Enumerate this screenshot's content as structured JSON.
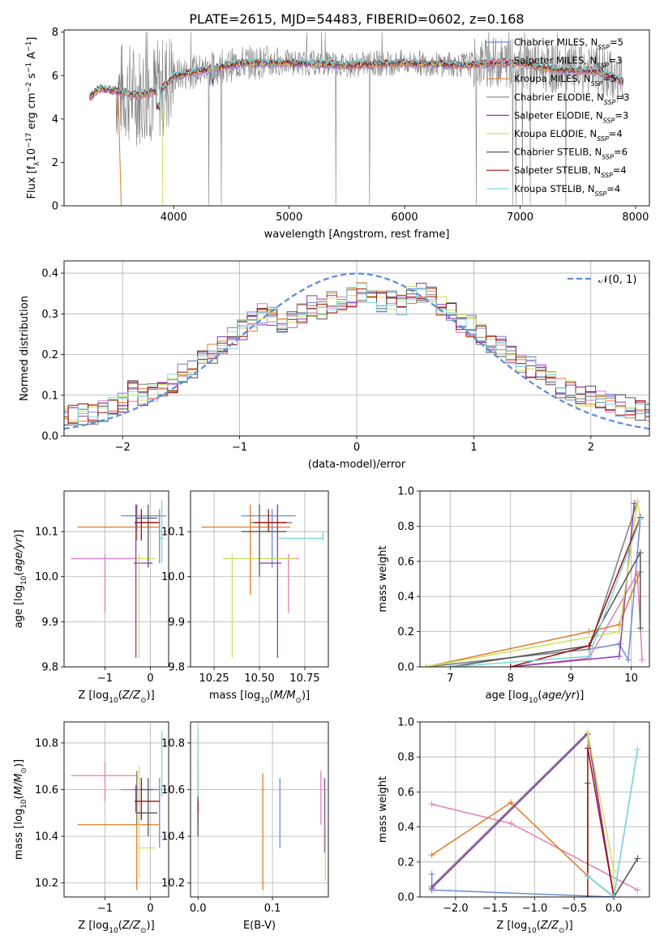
{
  "title": "PLATE=2615, MJD=54483, FIBERID=0602, z=0.168",
  "colors": {
    "blue": "#6c8cd6",
    "pink": "#e17fba",
    "orange": "#e07b26",
    "gray": "#7f7f7f",
    "purple": "#8e3ab0",
    "lime": "#c9e25c",
    "dark": "#555555",
    "red": "#a01010",
    "cyan": "#7fd6dc",
    "norm": "#5b8bd9"
  },
  "chart_data": [
    {
      "type": "line",
      "id": "spectrum",
      "xlabel": "wavelength [Angstrom, rest frame]",
      "ylabel": "Flux [f_λ 10^-17 erg cm^-2 s^-1 A^-1]",
      "xlim": [
        3050,
        8120
      ],
      "ylim": [
        0,
        8.1
      ],
      "xticks": [
        4000,
        5000,
        6000,
        7000,
        8000
      ],
      "yticks": [
        0,
        2,
        4,
        6,
        8
      ],
      "legend_position": "top-right",
      "series": [
        {
          "name": "Chabrier MILES, N_SSP=5",
          "color": "blue"
        },
        {
          "name": "Salpeter MILES, N_SSP=3",
          "color": "pink"
        },
        {
          "name": "Kroupa MILES, N_SSP=5",
          "color": "orange"
        },
        {
          "name": "Chabrier ELODIE, N_SSP=3",
          "color": "gray"
        },
        {
          "name": "Salpeter ELODIE, N_SSP=3",
          "color": "purple"
        },
        {
          "name": "Kroupa ELODIE, N_SSP=4",
          "color": "lime"
        },
        {
          "name": "Chabrier STELIB, N_SSP=6",
          "color": "dark"
        },
        {
          "name": "Salpeter STELIB, N_SSP=4",
          "color": "red"
        },
        {
          "name": "Kroupa STELIB, N_SSP=4",
          "color": "cyan"
        }
      ],
      "continuum": {
        "x": [
          3270,
          3350,
          3500,
          3700,
          3900,
          4000,
          4300,
          4600,
          5000,
          5500,
          6000,
          6500,
          6800,
          7000,
          7300,
          7700,
          7900
        ],
        "y": [
          5.0,
          5.4,
          5.3,
          5.1,
          5.4,
          6.0,
          6.3,
          6.6,
          6.6,
          6.5,
          6.6,
          6.5,
          6.6,
          6.6,
          6.3,
          6.2,
          5.7
        ]
      }
    },
    {
      "type": "bar",
      "id": "residuals",
      "xlabel": "(data-model)/error",
      "ylabel": "Normed distribution",
      "xlim": [
        -2.5,
        2.5
      ],
      "ylim": [
        0,
        0.43
      ],
      "xticks": [
        -2,
        -1,
        0,
        1,
        2
      ],
      "yticks": [
        0.0,
        0.1,
        0.2,
        0.3,
        0.4
      ],
      "bin_width": 0.1,
      "envelope": [
        0.05,
        0.05,
        0.055,
        0.05,
        0.06,
        0.075,
        0.085,
        0.11,
        0.1,
        0.11,
        0.115,
        0.13,
        0.15,
        0.17,
        0.19,
        0.2,
        0.22,
        0.24,
        0.26,
        0.28,
        0.3,
        0.29,
        0.27,
        0.29,
        0.3,
        0.32,
        0.31,
        0.33,
        0.33,
        0.34,
        0.35,
        0.34,
        0.33,
        0.33,
        0.32,
        0.34,
        0.35,
        0.34,
        0.32,
        0.3,
        0.28,
        0.27,
        0.25,
        0.23,
        0.22,
        0.2,
        0.18,
        0.17,
        0.15,
        0.14,
        0.12,
        0.11,
        0.1,
        0.095,
        0.085,
        0.08,
        0.075,
        0.07,
        0.065,
        0.06
      ],
      "legend": "𝒩(0, 1)",
      "normal_curve": {
        "mu": 0,
        "sigma": 1,
        "color": "norm",
        "style": "dashed"
      }
    },
    {
      "type": "scatter",
      "id": "age-vs-Z",
      "xlabel": "Z [log10(Z/Z☉)]",
      "ylabel": "age [log10(age/yr)]",
      "xlim": [
        -1.9,
        0.4
      ],
      "ylim": [
        9.8,
        10.19
      ],
      "xticks": [
        -1,
        0
      ],
      "yticks": [
        9.8,
        9.9,
        10.0,
        10.1
      ],
      "points": [
        {
          "c": "blue",
          "x": 0.2,
          "xl": -0.65,
          "xh": 0.35,
          "y": 10.135,
          "yl": 10.03,
          "yh": 10.15
        },
        {
          "c": "pink",
          "x": -1.0,
          "xl": -1.75,
          "xh": -0.3,
          "y": 10.04,
          "yl": 9.92,
          "yh": 10.05
        },
        {
          "c": "orange",
          "x": -0.3,
          "xl": -1.6,
          "xh": 0.2,
          "y": 10.11,
          "yl": 10.08,
          "yh": 10.16
        },
        {
          "c": "gray",
          "x": -0.3,
          "xl": -0.35,
          "xh": 0.15,
          "y": 10.12,
          "yl": 10.1,
          "yh": 10.16
        },
        {
          "c": "purple",
          "x": -0.32,
          "xl": -0.37,
          "xh": 0.05,
          "y": 10.03,
          "yl": 9.82,
          "yh": 10.16
        },
        {
          "c": "lime",
          "x": -0.25,
          "xl": -0.3,
          "xh": 0.1,
          "y": 10.04,
          "yl": 9.82,
          "yh": 10.05
        },
        {
          "c": "dark",
          "x": -0.05,
          "xl": -0.3,
          "xh": 0.15,
          "y": 10.13,
          "yl": 10.02,
          "yh": 10.16
        },
        {
          "c": "red",
          "x": -0.2,
          "xl": -0.35,
          "xh": 0.2,
          "y": 10.12,
          "yl": 10.08,
          "yh": 10.15
        },
        {
          "c": "cyan",
          "x": 0.25,
          "xl": 0.2,
          "xh": 0.3,
          "y": 10.085,
          "yl": 10.03,
          "yh": 10.17
        }
      ]
    },
    {
      "type": "scatter",
      "id": "age-vs-mass",
      "xlabel": "mass [log10(M/M☉)]",
      "ylabel": "",
      "xlim": [
        10.12,
        10.88
      ],
      "ylim": [
        9.8,
        10.19
      ],
      "xticks": [
        10.25,
        10.5,
        10.75
      ],
      "yticks": [
        9.8,
        9.9,
        10.0,
        10.1
      ],
      "points": [
        {
          "c": "blue",
          "x": 10.57,
          "xl": 10.4,
          "xh": 10.7,
          "y": 10.135,
          "yl": 10.02,
          "yh": 10.15
        },
        {
          "c": "pink",
          "x": 10.66,
          "xl": 10.55,
          "xh": 10.72,
          "y": 10.04,
          "yl": 9.92,
          "yh": 10.05
        },
        {
          "c": "orange",
          "x": 10.45,
          "xl": 10.18,
          "xh": 10.67,
          "y": 10.11,
          "yl": 9.96,
          "yh": 10.16
        },
        {
          "c": "gray",
          "x": 10.6,
          "xl": 10.45,
          "xh": 10.68,
          "y": 10.12,
          "yl": 10.08,
          "yh": 10.16
        },
        {
          "c": "purple",
          "x": 10.6,
          "xl": 10.5,
          "xh": 10.62,
          "y": 10.03,
          "yl": 9.82,
          "yh": 10.16
        },
        {
          "c": "lime",
          "x": 10.35,
          "xl": 10.3,
          "xh": 10.7,
          "y": 10.04,
          "yl": 9.82,
          "yh": 10.05
        },
        {
          "c": "dark",
          "x": 10.5,
          "xl": 10.4,
          "xh": 10.65,
          "y": 10.1,
          "yl": 10.0,
          "yh": 10.16
        },
        {
          "c": "red",
          "x": 10.55,
          "xl": 10.47,
          "xh": 10.65,
          "y": 10.12,
          "yl": 10.1,
          "yh": 10.15
        },
        {
          "c": "cyan",
          "x": 10.85,
          "xl": 10.6,
          "xh": 10.85,
          "y": 10.085,
          "yl": 10.08,
          "yh": 10.1
        }
      ]
    },
    {
      "type": "line",
      "id": "weight-vs-age",
      "xlabel": "age [log10(age/yr)]",
      "ylabel": "mass weight",
      "xlim": [
        6.5,
        10.3
      ],
      "ylim": [
        0,
        1.0
      ],
      "xticks": [
        7,
        8,
        9,
        10
      ],
      "yticks": [
        0.0,
        0.2,
        0.4,
        0.6,
        0.8,
        1.0
      ],
      "series": [
        {
          "c": "blue",
          "x": [
            6.6,
            9.3,
            9.8,
            9.95,
            10.15
          ],
          "y": [
            0.0,
            0.1,
            0.13,
            0.04,
            0.84
          ]
        },
        {
          "c": "pink",
          "x": [
            8.0,
            9.3,
            10.1,
            10.18
          ],
          "y": [
            0.0,
            0.05,
            0.53,
            0.04
          ]
        },
        {
          "c": "orange",
          "x": [
            6.6,
            9.3,
            9.8,
            10.15
          ],
          "y": [
            0.0,
            0.2,
            0.24,
            0.54
          ]
        },
        {
          "c": "gray",
          "x": [
            6.6,
            9.3,
            10.1
          ],
          "y": [
            0.0,
            0.1,
            0.94
          ]
        },
        {
          "c": "purple",
          "x": [
            8.0,
            9.8,
            10.05
          ],
          "y": [
            0.0,
            0.06,
            0.93
          ]
        },
        {
          "c": "lime",
          "x": [
            6.6,
            9.8,
            10.1,
            10.15
          ],
          "y": [
            0.0,
            0.2,
            0.94,
            0.85
          ]
        },
        {
          "c": "dark",
          "x": [
            7.0,
            9.3,
            10.15,
            10.15
          ],
          "y": [
            0.0,
            0.12,
            0.65,
            0.22
          ]
        },
        {
          "c": "red",
          "x": [
            8.0,
            9.3,
            10.15
          ],
          "y": [
            0.0,
            0.12,
            0.85
          ]
        },
        {
          "c": "cyan",
          "x": [
            7.0,
            9.3,
            10.15
          ],
          "y": [
            0.0,
            0.06,
            0.84
          ]
        }
      ]
    },
    {
      "type": "scatter",
      "id": "mass-vs-Z",
      "xlabel": "Z [log10(Z/Z☉)]",
      "ylabel": "mass [log10(M/M☉)]",
      "xlim": [
        -1.9,
        0.4
      ],
      "ylim": [
        10.14,
        10.89
      ],
      "xticks": [
        -1,
        0
      ],
      "yticks": [
        10.2,
        10.4,
        10.6,
        10.8
      ],
      "points": [
        {
          "c": "blue",
          "x": 0.2,
          "xl": -0.65,
          "xh": 0.35,
          "y": 10.6,
          "yl": 10.35,
          "yh": 10.65
        },
        {
          "c": "pink",
          "x": -1.0,
          "xl": -1.75,
          "xh": -0.3,
          "y": 10.66,
          "yl": 10.55,
          "yh": 10.72
        },
        {
          "c": "orange",
          "x": -0.3,
          "xl": -1.6,
          "xh": 0.2,
          "y": 10.45,
          "yl": 10.17,
          "yh": 10.67
        },
        {
          "c": "gray",
          "x": -0.3,
          "xl": -0.35,
          "xh": 0.15,
          "y": 10.6,
          "yl": 10.45,
          "yh": 10.68
        },
        {
          "c": "purple",
          "x": -0.32,
          "xl": -0.37,
          "xh": 0.05,
          "y": 10.6,
          "yl": 10.5,
          "yh": 10.62
        },
        {
          "c": "lime",
          "x": -0.25,
          "xl": -0.3,
          "xh": 0.1,
          "y": 10.35,
          "yl": 10.22,
          "yh": 10.7
        },
        {
          "c": "dark",
          "x": -0.05,
          "xl": -0.3,
          "xh": 0.15,
          "y": 10.5,
          "yl": 10.4,
          "yh": 10.65
        },
        {
          "c": "red",
          "x": -0.2,
          "xl": -0.35,
          "xh": 0.2,
          "y": 10.55,
          "yl": 10.47,
          "yh": 10.65
        },
        {
          "c": "cyan",
          "x": 0.25,
          "xl": 0.2,
          "xh": 0.3,
          "y": 10.6,
          "yl": 10.57,
          "yh": 10.85
        }
      ]
    },
    {
      "type": "scatter",
      "id": "mass-vs-ebv",
      "xlabel": "E(B-V)",
      "ylabel": "",
      "xlim": [
        -0.01,
        0.175
      ],
      "ylim": [
        10.14,
        10.89
      ],
      "xticks": [
        0.0,
        0.1
      ],
      "yticks": [
        10.2,
        10.4,
        10.6,
        10.8
      ],
      "points": [
        {
          "c": "blue",
          "x": 0.11,
          "yl": 10.35,
          "yh": 10.65
        },
        {
          "c": "pink",
          "x": 0.165,
          "yl": 10.45,
          "yh": 10.68
        },
        {
          "c": "orange",
          "x": 0.087,
          "yl": 10.17,
          "yh": 10.67
        },
        {
          "c": "gray",
          "x": 0.0,
          "yl": 10.45,
          "yh": 10.68
        },
        {
          "c": "purple",
          "x": 0.17,
          "yl": 10.33,
          "yh": 10.65
        },
        {
          "c": "lime",
          "x": 0.171,
          "yl": 10.21,
          "yh": 10.6
        },
        {
          "c": "dark",
          "x": 0.0,
          "yl": 10.4,
          "yh": 10.72
        },
        {
          "c": "red",
          "x": 0.0,
          "yl": 10.5,
          "yh": 10.55
        },
        {
          "c": "cyan",
          "x": 0.0,
          "yl": 10.57,
          "yh": 10.86
        }
      ]
    },
    {
      "type": "line",
      "id": "weight-vs-Z",
      "xlabel": "Z [log10(Z/Z☉)]",
      "ylabel": "mass weight",
      "xlim": [
        -2.45,
        0.45
      ],
      "ylim": [
        0,
        1.0
      ],
      "xticks": [
        -2.0,
        -1.5,
        -1.0,
        -0.5,
        0.0
      ],
      "yticks": [
        0.0,
        0.2,
        0.4,
        0.6,
        0.8,
        1.0
      ],
      "series": [
        {
          "c": "blue",
          "x": [
            -2.3,
            -2.3,
            0.0,
            0.3
          ],
          "y": [
            0.13,
            0.04,
            0.0,
            0.84
          ]
        },
        {
          "c": "pink",
          "x": [
            -2.3,
            -1.3,
            0.3
          ],
          "y": [
            0.53,
            0.42,
            0.04
          ]
        },
        {
          "c": "orange",
          "x": [
            -2.3,
            -1.3,
            -0.33,
            0.0,
            0.3
          ],
          "y": [
            0.24,
            0.54,
            0.12,
            0.0,
            0.22
          ]
        },
        {
          "c": "gray",
          "x": [
            -2.3,
            -0.33,
            0.0
          ],
          "y": [
            0.06,
            0.94,
            0.0
          ]
        },
        {
          "c": "purple",
          "x": [
            -2.3,
            -0.33,
            0.0
          ],
          "y": [
            0.05,
            0.93,
            0.0
          ]
        },
        {
          "c": "lime",
          "x": [
            -0.33,
            -0.33,
            0.0,
            0.0
          ],
          "y": [
            0.2,
            0.94,
            0.15,
            0.0
          ]
        },
        {
          "c": "dark",
          "x": [
            -0.33,
            -0.33,
            0.0,
            0.3
          ],
          "y": [
            0.65,
            0.12,
            0.0,
            0.22
          ]
        },
        {
          "c": "red",
          "x": [
            -0.33,
            -0.33,
            0.0
          ],
          "y": [
            0.0,
            0.85,
            0.0
          ]
        },
        {
          "c": "cyan",
          "x": [
            -0.33,
            0.0,
            0.3
          ],
          "y": [
            0.12,
            0.0,
            0.84
          ]
        }
      ]
    }
  ]
}
